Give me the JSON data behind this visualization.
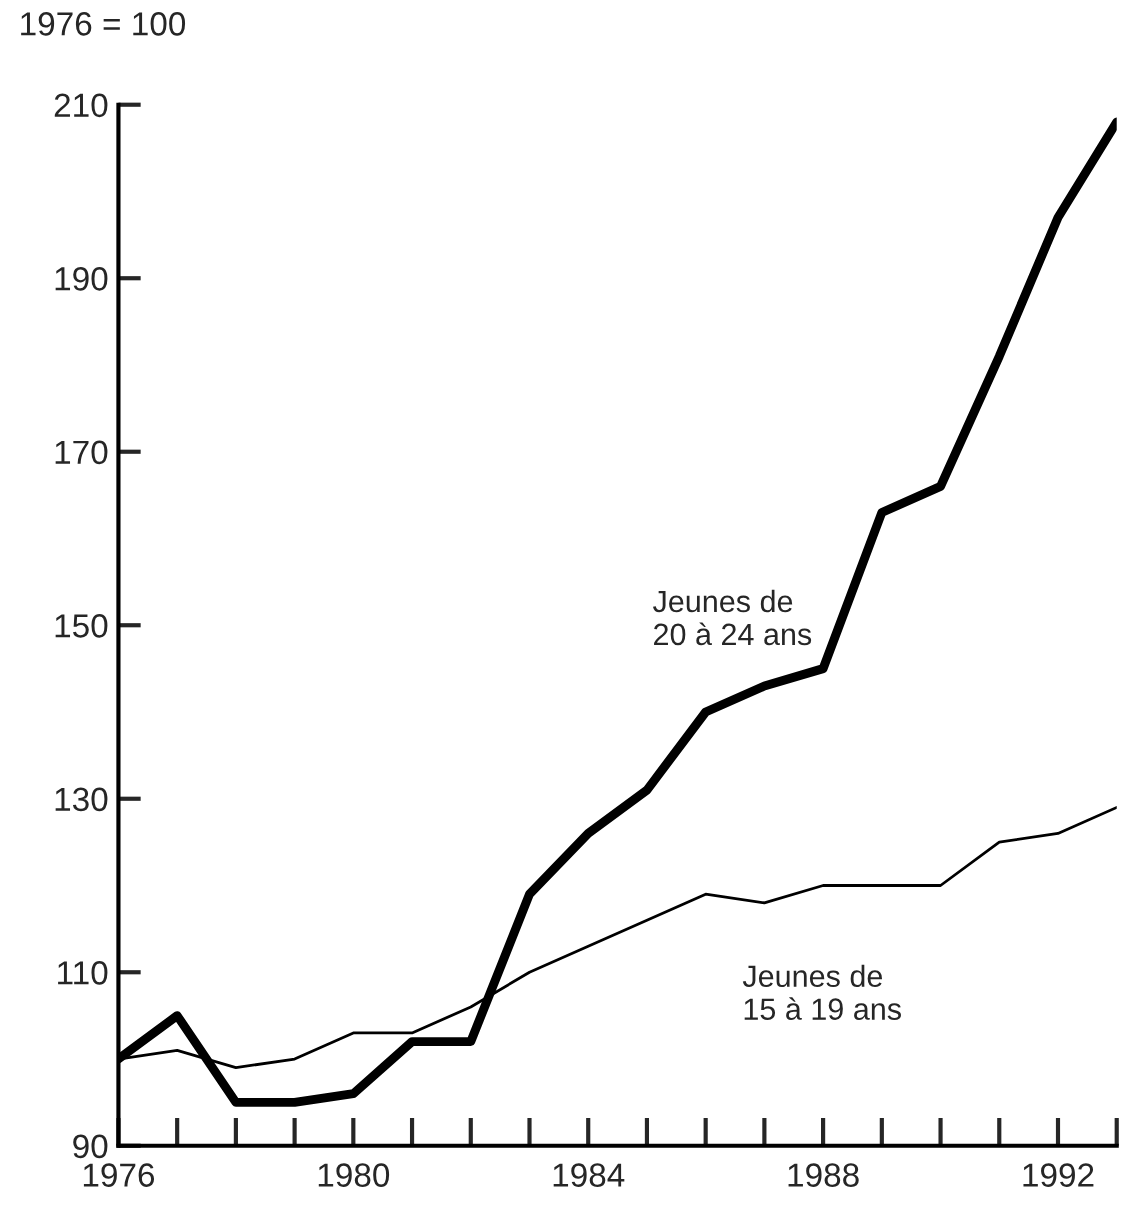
{
  "chart_data": {
    "type": "line",
    "ylabel": "1976 = 100",
    "x": [
      1976,
      1977,
      1978,
      1979,
      1980,
      1981,
      1982,
      1983,
      1984,
      1985,
      1986,
      1987,
      1988,
      1989,
      1990,
      1991,
      1992,
      1993
    ],
    "series": [
      {
        "color": "#000000",
        "values": [
          100,
          105,
          95,
          95,
          96,
          102,
          102,
          119,
          126,
          131,
          140,
          143,
          145,
          163,
          166,
          181,
          197,
          208
        ]
      },
      {
        "color": "#000000",
        "values": [
          100,
          101,
          99,
          100,
          103,
          103,
          106,
          110,
          113,
          116,
          119,
          118,
          120,
          120,
          120,
          125,
          126,
          129
        ]
      }
    ],
    "annotations": [
      "Jeunes de\n20 à 24 ans",
      "Jeunes de\n15 à 19 ans"
    ],
    "xlim": [
      1976,
      1993
    ],
    "xticks": [
      1976,
      {
        "value": 1977,
        "label": null
      },
      {
        "value": 1978,
        "label": null
      },
      {
        "value": 1979,
        "label": null
      },
      1980,
      {
        "value": 1981,
        "label": null
      },
      {
        "value": 1982,
        "label": null
      },
      {
        "value": 1983,
        "label": null
      },
      1984,
      {
        "value": 1985,
        "label": null
      },
      {
        "value": 1986,
        "label": null
      },
      {
        "value": 1987,
        "label": null
      },
      1988,
      {
        "value": 1989,
        "label": null
      },
      {
        "value": 1990,
        "label": null
      },
      {
        "value": 1991,
        "label": null
      },
      1992,
      {
        "value": 1993,
        "label": null
      }
    ],
    "ylim": [
      90,
      210
    ],
    "yticks": [
      90,
      110,
      130,
      150,
      170,
      190,
      210
    ],
    "grid": false,
    "marker": "none",
    "line_style": "solid"
  }
}
